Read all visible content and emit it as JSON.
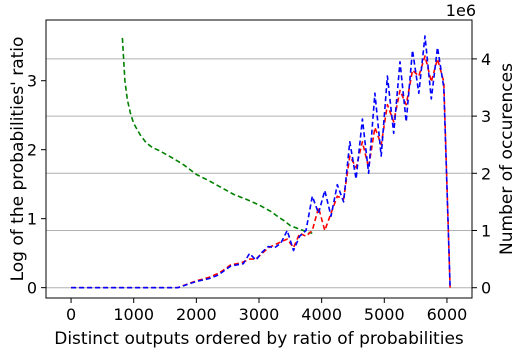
{
  "chart_data": {
    "type": "line",
    "title": "",
    "xlabel": "Distinct outputs ordered by ratio of probabilities",
    "ylabel_left": "Log of the probabilities' ratio",
    "ylabel_right": "Number of occurences",
    "right_axis_offset_label": "1e6",
    "xlim": [
      -400,
      6400
    ],
    "ylim_left": [
      -0.15,
      3.88
    ],
    "ylim_right": [
      -0.18,
      4.68
    ],
    "x_ticks": [
      0,
      1000,
      2000,
      3000,
      4000,
      5000,
      6000
    ],
    "x_tick_labels": [
      "0",
      "1000",
      "2000",
      "3000",
      "4000",
      "5000",
      "6000"
    ],
    "y_left_ticks": [
      0,
      1,
      2,
      3
    ],
    "y_left_tick_labels": [
      "0",
      "1",
      "2",
      "3"
    ],
    "y_right_ticks": [
      0,
      1,
      2,
      3,
      4
    ],
    "y_right_tick_labels": [
      "0",
      "1",
      "2",
      "3",
      "4"
    ],
    "grid": "horizontal lines at right-axis ticks",
    "series": [
      {
        "axis": "left",
        "color": "#008000",
        "style": "dashed",
        "x": [
          820,
          860,
          900,
          950,
          1000,
          1100,
          1200,
          1300,
          1400,
          1500,
          1600,
          1800,
          2000,
          2200,
          2400,
          2600,
          2800,
          3000,
          3200,
          3300,
          3400,
          3500,
          3700,
          3800,
          3850
        ],
        "y": [
          3.62,
          3.0,
          2.72,
          2.52,
          2.38,
          2.22,
          2.1,
          2.03,
          1.99,
          1.94,
          1.89,
          1.78,
          1.64,
          1.55,
          1.45,
          1.35,
          1.28,
          1.2,
          1.1,
          1.03,
          0.97,
          0.9,
          0.83,
          0.8,
          0.79
        ]
      },
      {
        "axis": "right",
        "color": "#ff0000",
        "style": "dashed",
        "x": [
          0,
          1700,
          2000,
          2200,
          2350,
          2450,
          2550,
          2650,
          2750,
          2850,
          2950,
          3050,
          3150,
          3250,
          3350,
          3450,
          3550,
          3650,
          3750,
          3850,
          3950,
          4050,
          4150,
          4250,
          4350,
          4450,
          4550,
          4650,
          4750,
          4850,
          4950,
          5050,
          5150,
          5250,
          5350,
          5450,
          5550,
          5650,
          5750,
          5850,
          5950,
          6050
        ],
        "y": [
          0,
          0,
          0.12,
          0.18,
          0.25,
          0.32,
          0.4,
          0.42,
          0.45,
          0.5,
          0.5,
          0.6,
          0.7,
          0.75,
          0.8,
          0.85,
          0.7,
          0.95,
          0.9,
          1.0,
          1.4,
          1.0,
          1.3,
          1.6,
          1.55,
          2.3,
          2.1,
          2.55,
          2.1,
          2.8,
          2.5,
          3.2,
          2.9,
          3.45,
          3.2,
          3.8,
          3.7,
          4.05,
          3.6,
          4.0,
          3.6,
          0
        ]
      },
      {
        "axis": "right",
        "color": "#0000ff",
        "style": "dashed",
        "x": [
          0,
          1700,
          2000,
          2200,
          2350,
          2450,
          2550,
          2650,
          2750,
          2850,
          2950,
          3050,
          3150,
          3250,
          3350,
          3450,
          3550,
          3650,
          3750,
          3850,
          3950,
          4050,
          4150,
          4250,
          4350,
          4450,
          4550,
          4650,
          4750,
          4850,
          4950,
          5050,
          5150,
          5250,
          5350,
          5450,
          5550,
          5650,
          5750,
          5850,
          5950,
          6050
        ],
        "y": [
          0,
          0,
          0.11,
          0.16,
          0.22,
          0.3,
          0.38,
          0.4,
          0.42,
          0.6,
          0.48,
          0.62,
          0.72,
          0.7,
          0.78,
          1.0,
          0.65,
          0.9,
          1.0,
          1.6,
          1.3,
          1.7,
          1.25,
          1.8,
          1.5,
          2.55,
          1.9,
          2.95,
          2.0,
          3.4,
          2.3,
          3.7,
          2.7,
          3.95,
          2.9,
          4.15,
          3.4,
          4.4,
          3.3,
          4.2,
          3.5,
          0
        ]
      }
    ]
  }
}
